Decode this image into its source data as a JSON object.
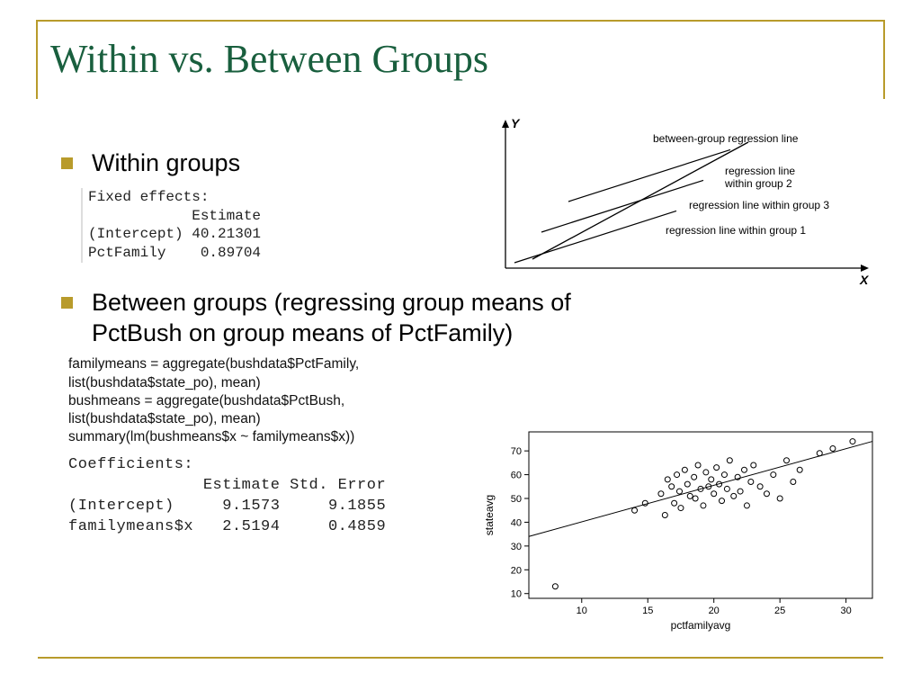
{
  "title": "Within vs. Between Groups",
  "bullets": {
    "b1": "Within groups",
    "b2": "Between groups (regressing group means of PctBush on group means of PctFamily)"
  },
  "fixed_effects": {
    "header": "Fixed effects:",
    "colh": "            Estimate ",
    "row1": "(Intercept) 40.21301",
    "row2": "PctFamily    0.89704"
  },
  "rcode": [
    "familymeans = aggregate(bushdata$PctFamily,",
    "list(bushdata$state_po), mean)",
    "bushmeans = aggregate(bushdata$PctBush,",
    "list(bushdata$state_po), mean)",
    "summary(lm(bushmeans$x ~ familymeans$x))"
  ],
  "coefficients": {
    "header": "Coefficients:",
    "colh": "              Estimate Std. Error",
    "row1": "(Intercept)     9.1573     9.1855",
    "row2": "familymeans$x   2.5194     0.4859"
  },
  "diagram": {
    "y_label": "Y",
    "x_label": "X",
    "labels": {
      "between": "between-group regression line",
      "g2": "regression line\n   within group 2",
      "g3": "regression line within group 3",
      "g1": "regression line within group 1"
    },
    "axis_color": "#000000",
    "line_color": "#000000",
    "label_fontsize": 12,
    "axis_label_fontsize": 14
  },
  "scatter": {
    "type": "scatter",
    "xlabel": "pctfamilyavg",
    "ylabel": "stateavg",
    "label_fontsize": 12,
    "tick_fontsize": 11,
    "x_ticks": [
      10,
      15,
      20,
      25,
      30
    ],
    "y_ticks": [
      10,
      20,
      30,
      40,
      50,
      60,
      70
    ],
    "xlim": [
      6,
      32
    ],
    "ylim": [
      8,
      78
    ],
    "frame_color": "#000000",
    "point_color": "#000000",
    "point_fill": "none",
    "point_radius": 3,
    "line_color": "#000000",
    "reg_line": {
      "x1": 6,
      "y1": 34,
      "x2": 32,
      "y2": 74
    },
    "points": [
      [
        8.0,
        13
      ],
      [
        14.0,
        45
      ],
      [
        14.8,
        48
      ],
      [
        16.0,
        52
      ],
      [
        16.3,
        43
      ],
      [
        16.5,
        58
      ],
      [
        16.8,
        55
      ],
      [
        17.0,
        48
      ],
      [
        17.2,
        60
      ],
      [
        17.4,
        53
      ],
      [
        17.5,
        46
      ],
      [
        17.8,
        62
      ],
      [
        18.0,
        56
      ],
      [
        18.2,
        51
      ],
      [
        18.5,
        59
      ],
      [
        18.6,
        50
      ],
      [
        18.8,
        64
      ],
      [
        19.0,
        54
      ],
      [
        19.2,
        47
      ],
      [
        19.4,
        61
      ],
      [
        19.6,
        55
      ],
      [
        19.8,
        58
      ],
      [
        20.0,
        52
      ],
      [
        20.2,
        63
      ],
      [
        20.4,
        56
      ],
      [
        20.6,
        49
      ],
      [
        20.8,
        60
      ],
      [
        21.0,
        54
      ],
      [
        21.2,
        66
      ],
      [
        21.5,
        51
      ],
      [
        21.8,
        59
      ],
      [
        22.0,
        53
      ],
      [
        22.3,
        62
      ],
      [
        22.5,
        47
      ],
      [
        22.8,
        57
      ],
      [
        23.0,
        64
      ],
      [
        23.5,
        55
      ],
      [
        24.0,
        52
      ],
      [
        24.5,
        60
      ],
      [
        25.0,
        50
      ],
      [
        25.5,
        66
      ],
      [
        26.0,
        57
      ],
      [
        26.5,
        62
      ],
      [
        28.0,
        69
      ],
      [
        29.0,
        71
      ],
      [
        30.5,
        74
      ]
    ]
  }
}
